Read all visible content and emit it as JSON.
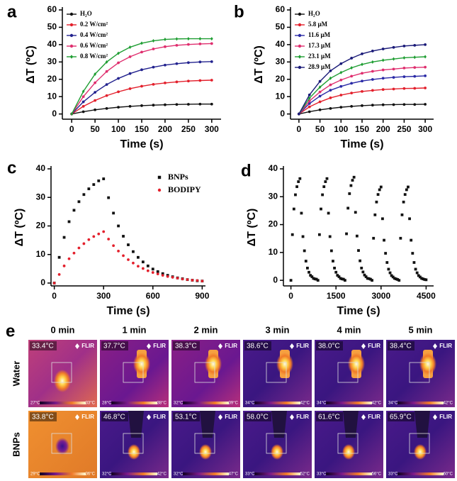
{
  "chart_data": [
    {
      "type": "line",
      "label": "a",
      "x_label": "Time (s)",
      "y_label": "ΔT (ºC)",
      "legend": "upper left",
      "x": [
        0,
        25,
        50,
        75,
        100,
        125,
        150,
        175,
        200,
        225,
        250,
        275,
        300
      ],
      "xlim": [
        -20,
        320
      ],
      "xticks": [
        0,
        50,
        100,
        150,
        200,
        250,
        300
      ],
      "ylim": [
        -3,
        60
      ],
      "yticks": [
        0,
        10,
        20,
        30,
        40,
        50,
        60
      ],
      "series": [
        {
          "name": "H₂O",
          "color": "#111111",
          "marker": "circle",
          "values": [
            0,
            1.3,
            2.4,
            3.2,
            3.9,
            4.4,
            4.8,
            5.1,
            5.3,
            5.5,
            5.6,
            5.7,
            5.7
          ]
        },
        {
          "name": "0.2 W/cm²",
          "color": "#e3202c",
          "marker": "circle",
          "values": [
            0,
            4.4,
            7.8,
            10.6,
            12.8,
            14.6,
            16,
            17.1,
            17.9,
            18.5,
            19,
            19.3,
            19.5
          ]
        },
        {
          "name": "0.4 W/cm²",
          "color": "#23238f",
          "marker": "circle",
          "values": [
            0,
            7,
            12.5,
            17,
            20.5,
            23.3,
            25.5,
            27,
            28.2,
            29,
            29.6,
            30,
            30.2
          ]
        },
        {
          "name": "0.6 W/cm²",
          "color": "#df2e6e",
          "marker": "circle",
          "values": [
            0,
            10,
            18,
            24.5,
            29.5,
            33,
            35.7,
            37.5,
            38.8,
            39.6,
            40.1,
            40.4,
            40.6
          ]
        },
        {
          "name": "0.8 W/cm²",
          "color": "#1f9e33",
          "marker": "diamond",
          "values": [
            0,
            13,
            23,
            30,
            35,
            38.5,
            40.8,
            42.2,
            43,
            43.3,
            43.4,
            43.4,
            43.4
          ]
        }
      ]
    },
    {
      "type": "line",
      "label": "b",
      "x_label": "Time (s)",
      "y_label": "ΔT (ºC)",
      "legend": "upper left",
      "x": [
        0,
        25,
        50,
        75,
        100,
        125,
        150,
        175,
        200,
        225,
        250,
        275,
        300
      ],
      "xlim": [
        -20,
        320
      ],
      "xticks": [
        0,
        50,
        100,
        150,
        200,
        250,
        300
      ],
      "ylim": [
        -3,
        60
      ],
      "yticks": [
        0,
        10,
        20,
        30,
        40,
        50,
        60
      ],
      "series": [
        {
          "name": "H₂O",
          "color": "#111111",
          "marker": "circle",
          "values": [
            0,
            1.3,
            2.4,
            3.2,
            3.9,
            4.4,
            4.8,
            5.1,
            5.3,
            5.4,
            5.5,
            5.5,
            5.6
          ]
        },
        {
          "name": "5.8 μM",
          "color": "#e3202c",
          "marker": "circle",
          "values": [
            0,
            4.1,
            7,
            9.3,
            10.9,
            12.1,
            13,
            13.6,
            14.1,
            14.4,
            14.7,
            14.8,
            15
          ]
        },
        {
          "name": "11.6 μM",
          "color": "#2a2aa6",
          "marker": "circle",
          "values": [
            0,
            6,
            10.3,
            13.7,
            15.9,
            17.7,
            19,
            19.9,
            20.6,
            21.1,
            21.5,
            21.7,
            22
          ]
        },
        {
          "name": "17.3 μM",
          "color": "#df2e6e",
          "marker": "circle",
          "values": [
            0,
            7.5,
            12.7,
            16.8,
            19.6,
            21.8,
            23.5,
            24.6,
            25.4,
            25.9,
            26.5,
            26.8,
            27
          ]
        },
        {
          "name": "23.1 μM",
          "color": "#1f9e33",
          "marker": "diamond",
          "values": [
            0,
            9.1,
            15.5,
            20.6,
            23.9,
            26.6,
            28.6,
            30,
            31,
            31.7,
            32.4,
            32.7,
            33
          ]
        },
        {
          "name": "28.9 μM",
          "color": "#1a1a78",
          "marker": "circle",
          "values": [
            0,
            11,
            18.8,
            24.9,
            29,
            32.2,
            34.7,
            36.3,
            37.5,
            38.4,
            39.2,
            39.6,
            40
          ]
        }
      ]
    },
    {
      "type": "scatter",
      "label": "c",
      "x_label": "Time (s)",
      "y_label": "ΔT (ºC)",
      "legend": "upper right",
      "x": [
        0,
        30,
        60,
        90,
        120,
        150,
        180,
        210,
        240,
        270,
        300,
        330,
        360,
        390,
        420,
        450,
        480,
        510,
        540,
        570,
        600,
        630,
        660,
        690,
        720,
        750,
        780,
        810,
        840,
        870,
        900
      ],
      "xlim": [
        -20,
        920
      ],
      "xticks": [
        0,
        300,
        600,
        900
      ],
      "ylim": [
        -1,
        40
      ],
      "yticks": [
        0,
        10,
        20,
        30,
        40
      ],
      "series": [
        {
          "name": "BNPs",
          "color": "#111111",
          "marker": "square",
          "values": [
            0,
            9,
            16,
            21.5,
            25.5,
            28.5,
            31,
            33,
            34.5,
            35.8,
            36.5,
            29.9,
            24.5,
            20,
            16.4,
            13.4,
            11,
            9,
            7.4,
            6,
            4.9,
            4,
            3.3,
            2.7,
            2.2,
            1.8,
            1.5,
            1.2,
            1,
            0.8,
            0.7
          ]
        },
        {
          "name": "BODIPY",
          "color": "#e3202c",
          "marker": "circle",
          "values": [
            0,
            3,
            6,
            8.5,
            10.5,
            12.3,
            13.8,
            15.2,
            16.3,
            17.2,
            18,
            15.4,
            13.1,
            11.2,
            9.6,
            8.2,
            7,
            5.9,
            5.1,
            4.3,
            3.7,
            3.2,
            2.7,
            2.3,
            2,
            1.7,
            1.4,
            1.2,
            1,
            0.9,
            0.7
          ]
        }
      ]
    },
    {
      "type": "scatter",
      "label": "d",
      "x_label": "Time (s)",
      "y_label": "ΔT (ºC)",
      "x": [
        0,
        50,
        100,
        150,
        200,
        250,
        300,
        350,
        400,
        450,
        500,
        550,
        600,
        650,
        700,
        750,
        800,
        850,
        900,
        950,
        1000,
        1050,
        1100,
        1150,
        1200,
        1250,
        1300,
        1350,
        1400,
        1450,
        1500,
        1550,
        1600,
        1650,
        1700,
        1750,
        1800,
        1850,
        1900,
        1950,
        2000,
        2050,
        2100,
        2150,
        2200,
        2250,
        2300,
        2350,
        2400,
        2450,
        2500,
        2550,
        2600,
        2650,
        2700,
        2750,
        2800,
        2850,
        2900,
        2950,
        3000,
        3050,
        3100,
        3150,
        3200,
        3250,
        3300,
        3350,
        3400,
        3450,
        3500,
        3550,
        3600,
        3650,
        3700,
        3750,
        3800,
        3850,
        3900,
        3950,
        4000,
        4050,
        4100,
        4150,
        4200,
        4250,
        4300,
        4350,
        4400,
        4450,
        4500
      ],
      "xlim": [
        -250,
        4750
      ],
      "xticks": [
        0,
        1500,
        3000,
        4500
      ],
      "ylim": [
        -2,
        40
      ],
      "yticks": [
        0,
        10,
        20,
        30,
        40
      ],
      "color": "#111111",
      "marker": "square",
      "values": [
        0,
        16.4,
        25.6,
        30.7,
        33.6,
        35.4,
        36.5,
        24.1,
        15.7,
        10.6,
        6.9,
        4.4,
        2.9,
        1.8,
        1.3,
        0.7,
        0.5,
        0.4,
        0,
        16.4,
        25.6,
        30.7,
        33.6,
        35.4,
        36.5,
        24.1,
        15.7,
        10.6,
        6.9,
        4.4,
        2.9,
        1.8,
        1.3,
        0.7,
        0.5,
        0.4,
        0,
        16.7,
        25.9,
        31.1,
        34,
        35.9,
        37,
        24.4,
        15.9,
        10.7,
        7,
        4.4,
        3,
        1.9,
        1.3,
        0.7,
        0.6,
        0.4,
        0,
        15.1,
        23.5,
        28.1,
        30.8,
        32.5,
        33.5,
        22.1,
        14.4,
        9.7,
        6.4,
        4,
        2.7,
        1.7,
        1.2,
        0.7,
        0.5,
        0.3,
        0,
        15.1,
        23.5,
        28.1,
        30.8,
        32.5,
        33.5,
        22.1,
        14.4,
        9.7,
        6.4,
        4,
        2.7,
        1.7,
        1.2,
        0.7,
        0.5,
        0.3,
        0.2
      ]
    }
  ],
  "thermal_images": {
    "label": "e",
    "logo": "FLIR",
    "columns": [
      "0 min",
      "1 min",
      "2 min",
      "3 min",
      "4 min",
      "5 min"
    ],
    "rows": [
      {
        "name": "Water",
        "cells": [
          {
            "temperature": "33.4°C",
            "scale_min": "27°C",
            "scale_max": "33°C"
          },
          {
            "temperature": "37.7°C",
            "scale_min": "28°C",
            "scale_max": "38°C"
          },
          {
            "temperature": "38.3°C",
            "scale_min": "32°C",
            "scale_max": "39°C"
          },
          {
            "temperature": "38.6°C",
            "scale_min": "34°C",
            "scale_max": "42°C"
          },
          {
            "temperature": "38.0°C",
            "scale_min": "34°C",
            "scale_max": "42°C"
          },
          {
            "temperature": "38.4°C",
            "scale_min": "34°C",
            "scale_max": "42°C"
          }
        ]
      },
      {
        "name": "BNPs",
        "cells": [
          {
            "temperature": "33.8°C",
            "scale_min": "29°C",
            "scale_max": "36°C"
          },
          {
            "temperature": "46.8°C",
            "scale_min": "32°C",
            "scale_max": "42°C"
          },
          {
            "temperature": "53.1°C",
            "scale_min": "32°C",
            "scale_max": "47°C"
          },
          {
            "temperature": "58.0°C",
            "scale_min": "33°C",
            "scale_max": "52°C"
          },
          {
            "temperature": "61.6°C",
            "scale_min": "33°C",
            "scale_max": "56°C"
          },
          {
            "temperature": "65.9°C",
            "scale_min": "33°C",
            "scale_max": "60°C"
          }
        ]
      }
    ]
  }
}
